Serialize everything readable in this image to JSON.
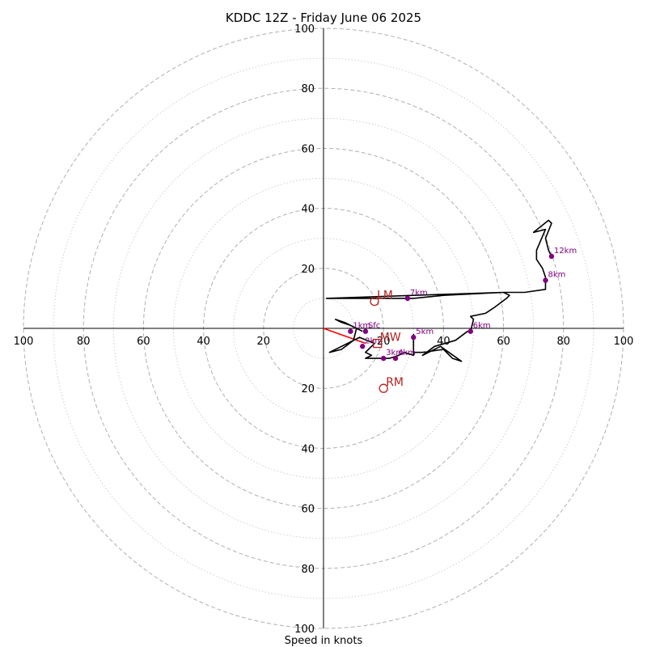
{
  "chart_data": {
    "type": "hodograph",
    "title": "KDDC 12Z - Friday June 06 2025",
    "xlabel": "Speed in knots",
    "max_speed": 100,
    "rings_major": [
      20,
      40,
      60,
      80,
      100
    ],
    "rings_minor": [
      10,
      30,
      50,
      70,
      90
    ],
    "tick_values": [
      20,
      40,
      60,
      80,
      100
    ],
    "grid": true,
    "colors": {
      "trace": "#000000",
      "heights": "#800080",
      "motion": "#b22222",
      "shear": "#ff0000",
      "grid": "#b0b0b0"
    },
    "trace": [
      [
        13,
        -1
      ],
      [
        9,
        1
      ],
      [
        6,
        2
      ],
      [
        4,
        3
      ],
      [
        7,
        2
      ],
      [
        11,
        0
      ],
      [
        10,
        -4
      ],
      [
        6,
        -7
      ],
      [
        2,
        -8
      ],
      [
        8,
        -5
      ],
      [
        12,
        -3
      ],
      [
        17,
        -5
      ],
      [
        14,
        -8
      ],
      [
        16,
        -9
      ],
      [
        14,
        -10
      ],
      [
        22,
        -10
      ],
      [
        25,
        -9
      ],
      [
        27,
        -8
      ],
      [
        30,
        -9
      ],
      [
        30,
        -3
      ],
      [
        30,
        -2
      ],
      [
        30,
        -8
      ],
      [
        33,
        -8
      ],
      [
        40,
        -7
      ],
      [
        43,
        -10
      ],
      [
        46,
        -11
      ],
      [
        39,
        -6
      ],
      [
        33,
        -9
      ],
      [
        37,
        -6
      ],
      [
        44,
        -4
      ],
      [
        48,
        -1
      ],
      [
        49,
        -1
      ],
      [
        50,
        3
      ],
      [
        49,
        4
      ],
      [
        54,
        5
      ],
      [
        57,
        7
      ],
      [
        61,
        10
      ],
      [
        62,
        11
      ],
      [
        60,
        12
      ],
      [
        40,
        11
      ],
      [
        30,
        10
      ],
      [
        20,
        10
      ],
      [
        10,
        10
      ],
      [
        1,
        10
      ],
      [
        30,
        11
      ],
      [
        60,
        12
      ],
      [
        67,
        12
      ],
      [
        74,
        13
      ],
      [
        74,
        17
      ],
      [
        73,
        20
      ],
      [
        71,
        23
      ],
      [
        71,
        26
      ],
      [
        74,
        33
      ],
      [
        70,
        32
      ],
      [
        75,
        36
      ],
      [
        76,
        35
      ],
      [
        74,
        30
      ],
      [
        75,
        26
      ],
      [
        76,
        24
      ]
    ],
    "height_markers": [
      {
        "label": "Sfc",
        "u": 14,
        "v": -1
      },
      {
        "label": "1km",
        "u": 9,
        "v": -1
      },
      {
        "label": "2km",
        "u": 13,
        "v": -6
      },
      {
        "label": "3km",
        "u": 20,
        "v": -10
      },
      {
        "label": "4km",
        "u": 24,
        "v": -10
      },
      {
        "label": "5km",
        "u": 30,
        "v": -3
      },
      {
        "label": "6km",
        "u": 49,
        "v": -1
      },
      {
        "label": "7km",
        "u": 28,
        "v": 10
      },
      {
        "label": "8km",
        "u": 74,
        "v": 16
      },
      {
        "label": "12km",
        "u": 76,
        "v": 24
      }
    ],
    "storm_motion": [
      {
        "label": "LM",
        "u": 17,
        "v": 9,
        "marker": "circle"
      },
      {
        "label": "RM",
        "u": 20,
        "v": -20,
        "marker": "circle"
      },
      {
        "label": "MW",
        "u": 18,
        "v": -5,
        "marker": "square"
      }
    ],
    "shear_vector": [
      [
        0,
        0
      ],
      [
        14,
        -5
      ]
    ]
  }
}
